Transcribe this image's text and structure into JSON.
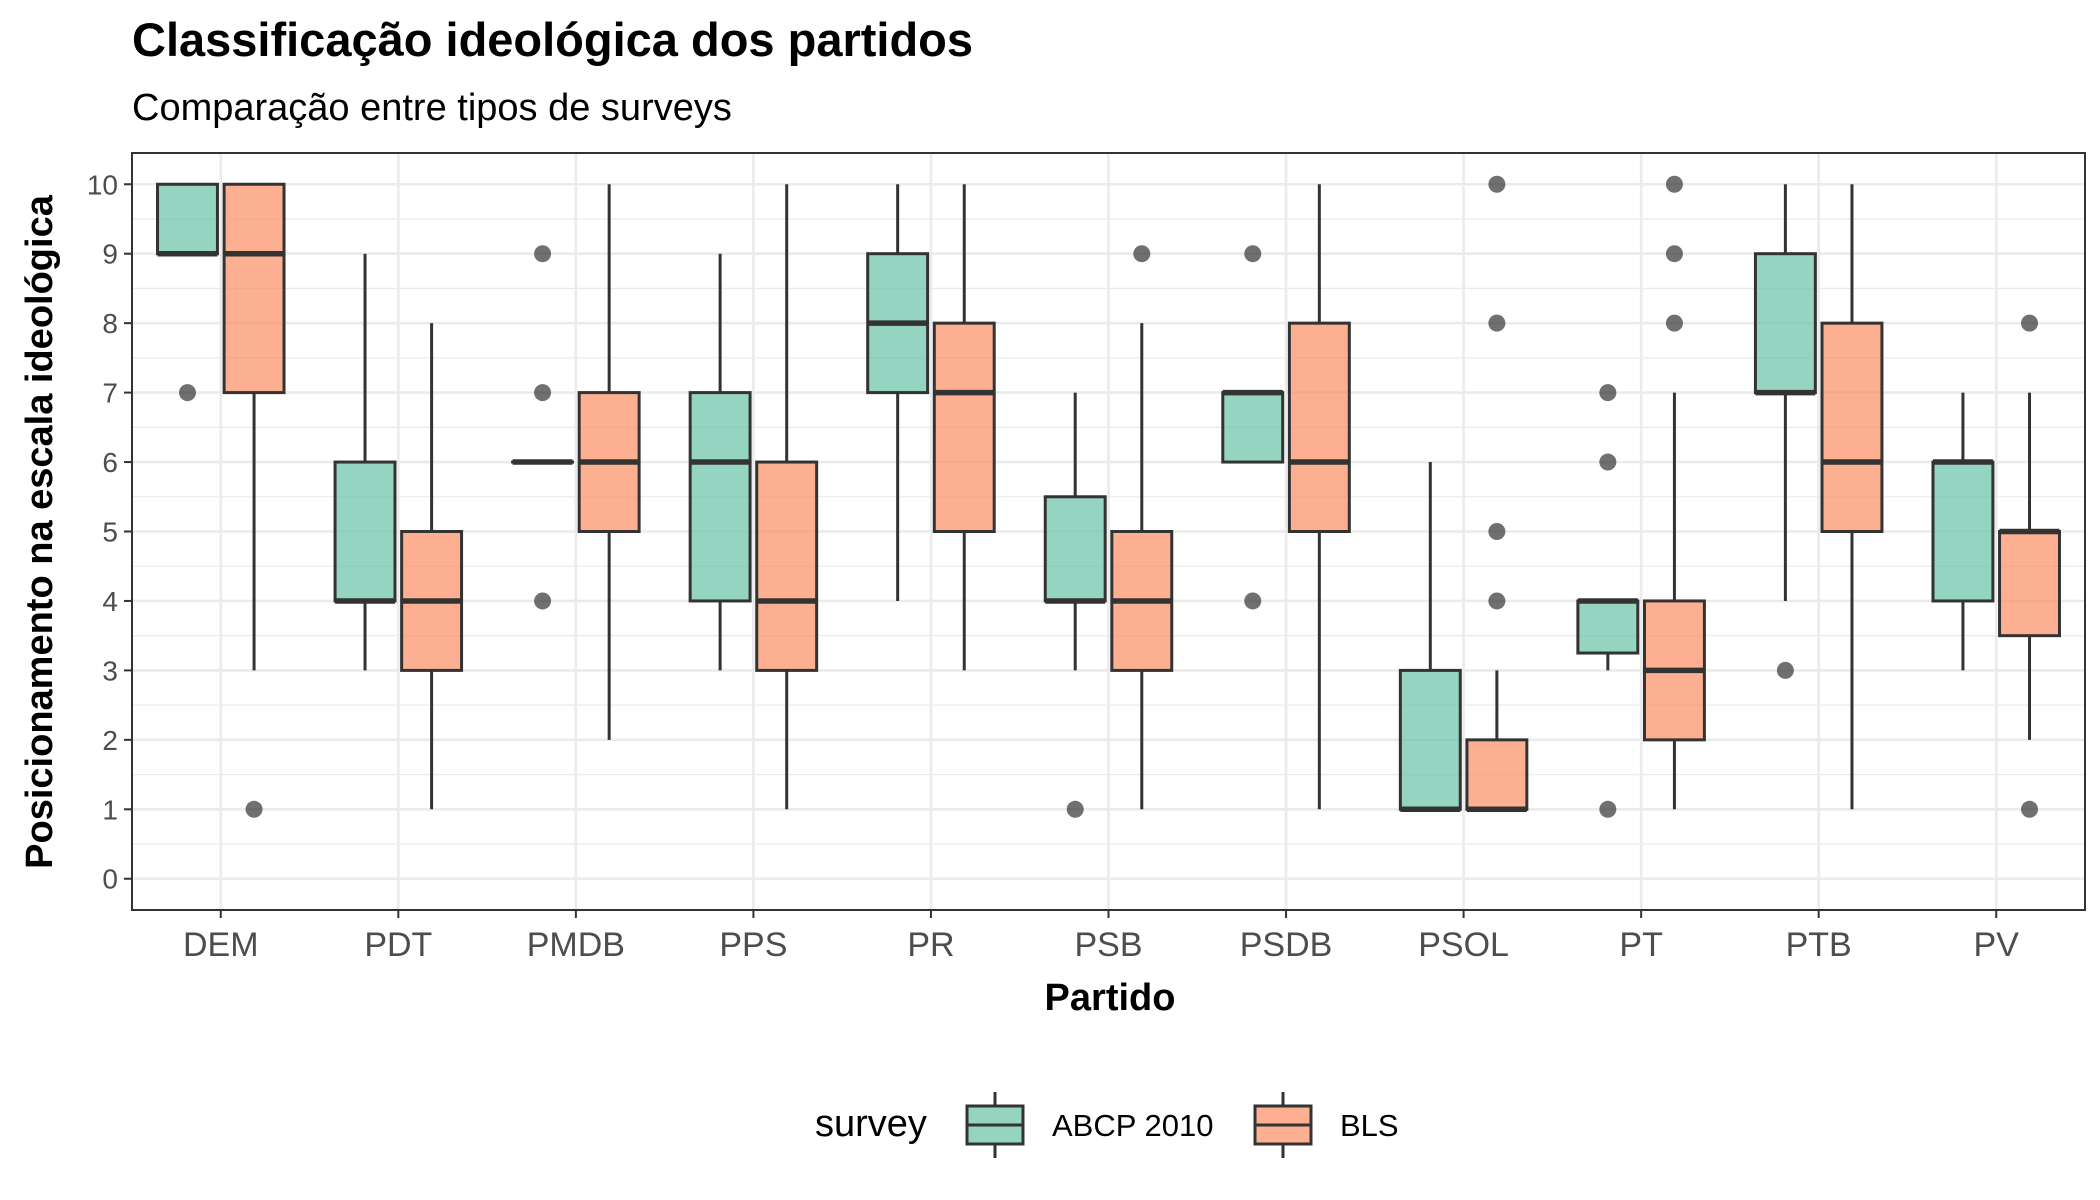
{
  "chart_data": {
    "type": "boxplot",
    "title": "Classificação ideológica dos partidos",
    "subtitle": "Comparação entre tipos de surveys",
    "xlabel": "Partido",
    "ylabel": "Posicionamento na escala ideológica",
    "ylim": [
      -0.45,
      10.45
    ],
    "yticks": [
      "0",
      "1",
      "2",
      "3",
      "4",
      "5",
      "6",
      "7",
      "8",
      "9",
      "10"
    ],
    "grid": true,
    "legend": {
      "title": "survey",
      "position": "bottom"
    },
    "categories": [
      "DEM",
      "PDT",
      "PMDB",
      "PPS",
      "PR",
      "PSB",
      "PSDB",
      "PSOL",
      "PT",
      "PTB",
      "PV"
    ],
    "series": [
      {
        "name": "ABCP 2010",
        "color": "#66c2a5",
        "boxes": [
          {
            "min": 9,
            "q1": 9,
            "median": 9,
            "q3": 10,
            "max": 10,
            "outliers": [
              7
            ]
          },
          {
            "min": 3,
            "q1": 4,
            "median": 4,
            "q3": 6,
            "max": 9,
            "outliers": []
          },
          {
            "min": 6,
            "q1": 6,
            "median": 6,
            "q3": 6,
            "max": 6,
            "outliers": [
              9,
              7,
              4
            ]
          },
          {
            "min": 3,
            "q1": 4,
            "median": 6,
            "q3": 7,
            "max": 9,
            "outliers": []
          },
          {
            "min": 4,
            "q1": 7,
            "median": 8,
            "q3": 9,
            "max": 10,
            "outliers": []
          },
          {
            "min": 3,
            "q1": 4,
            "median": 4,
            "q3": 5.5,
            "max": 7,
            "outliers": [
              1
            ]
          },
          {
            "min": 6,
            "q1": 6,
            "median": 7,
            "q3": 7,
            "max": 7,
            "outliers": [
              9,
              4
            ]
          },
          {
            "min": 1,
            "q1": 1,
            "median": 1,
            "q3": 3,
            "max": 6,
            "outliers": []
          },
          {
            "min": 3,
            "q1": 3.25,
            "median": 4,
            "q3": 4,
            "max": 4,
            "outliers": [
              7,
              6,
              1
            ]
          },
          {
            "min": 4,
            "q1": 7,
            "median": 7,
            "q3": 9,
            "max": 10,
            "outliers": [
              3
            ]
          },
          {
            "min": 3,
            "q1": 4,
            "median": 6,
            "q3": 6,
            "max": 7,
            "outliers": []
          }
        ]
      },
      {
        "name": "BLS",
        "color": "#fc8d62",
        "boxes": [
          {
            "min": 3,
            "q1": 7,
            "median": 9,
            "q3": 10,
            "max": 10,
            "outliers": [
              1
            ]
          },
          {
            "min": 1,
            "q1": 3,
            "median": 4,
            "q3": 5,
            "max": 8,
            "outliers": []
          },
          {
            "min": 2,
            "q1": 5,
            "median": 6,
            "q3": 7,
            "max": 10,
            "outliers": []
          },
          {
            "min": 1,
            "q1": 3,
            "median": 4,
            "q3": 6,
            "max": 10,
            "outliers": []
          },
          {
            "min": 3,
            "q1": 5,
            "median": 7,
            "q3": 8,
            "max": 10,
            "outliers": []
          },
          {
            "min": 1,
            "q1": 3,
            "median": 4,
            "q3": 5,
            "max": 8,
            "outliers": [
              9
            ]
          },
          {
            "min": 1,
            "q1": 5,
            "median": 6,
            "q3": 8,
            "max": 10,
            "outliers": []
          },
          {
            "min": 1,
            "q1": 1,
            "median": 1,
            "q3": 2,
            "max": 3,
            "outliers": [
              10,
              8,
              5,
              4
            ]
          },
          {
            "min": 1,
            "q1": 2,
            "median": 3,
            "q3": 4,
            "max": 7,
            "outliers": [
              10,
              9,
              8
            ]
          },
          {
            "min": 1,
            "q1": 5,
            "median": 6,
            "q3": 8,
            "max": 10,
            "outliers": []
          },
          {
            "min": 2,
            "q1": 3.5,
            "median": 5,
            "q3": 5,
            "max": 7,
            "outliers": [
              8,
              1
            ]
          }
        ]
      }
    ]
  }
}
